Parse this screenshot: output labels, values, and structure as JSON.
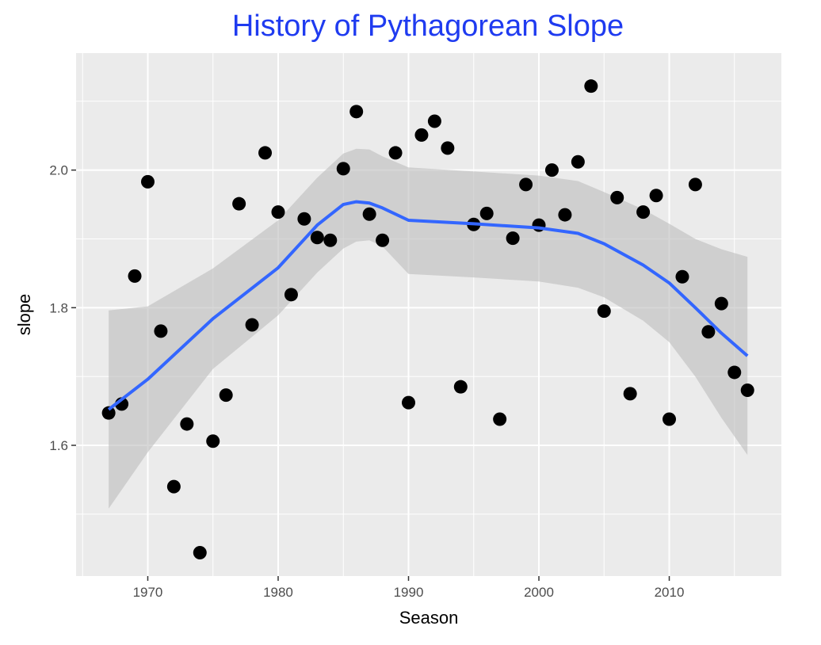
{
  "chart_data": {
    "type": "scatter",
    "title": "History of Pythagorean Slope",
    "xlabel": "Season",
    "ylabel": "slope",
    "xlim": [
      1964.5,
      2018.6
    ],
    "ylim": [
      1.41,
      2.17
    ],
    "xticks": [
      1970,
      1980,
      1990,
      2000,
      2010
    ],
    "yticks": [
      1.6,
      1.8,
      2.0
    ],
    "grid": true,
    "legend": "none",
    "colors": {
      "title": "#1f3bf0",
      "panel": "#ebebeb",
      "grid": "#ffffff",
      "point": "#000000",
      "smooth_line": "#3366ff",
      "band": "#bdbdbd"
    },
    "points": {
      "x": [
        1967,
        1968,
        1969,
        1970,
        1971,
        1972,
        1973,
        1974,
        1975,
        1976,
        1977,
        1978,
        1979,
        1980,
        1981,
        1982,
        1983,
        1984,
        1985,
        1986,
        1987,
        1988,
        1989,
        1990,
        1991,
        1992,
        1993,
        1994,
        1995,
        1996,
        1997,
        1998,
        1999,
        2000,
        2001,
        2002,
        2003,
        2004,
        2005,
        2006,
        2007,
        2008,
        2009,
        2010,
        2011,
        2012,
        2013,
        2014,
        2015,
        2016
      ],
      "y": [
        1.647,
        1.66,
        1.846,
        1.983,
        1.766,
        1.54,
        1.631,
        1.444,
        1.606,
        1.673,
        1.951,
        1.775,
        2.025,
        1.939,
        1.819,
        1.929,
        1.902,
        1.898,
        2.002,
        2.085,
        1.936,
        1.898,
        2.025,
        1.662,
        2.051,
        2.071,
        2.032,
        1.685,
        1.921,
        1.937,
        1.638,
        1.901,
        1.979,
        1.92,
        2.0,
        1.935,
        2.012,
        2.122,
        1.795,
        1.96,
        1.675,
        1.939,
        1.963,
        1.638,
        1.845,
        1.979,
        1.765,
        1.806,
        1.706,
        1.68
      ]
    },
    "smooth": {
      "x": [
        1967,
        1970,
        1975,
        1980,
        1983,
        1985,
        1986,
        1987,
        1988,
        1990,
        1995,
        2000,
        2003,
        2005,
        2008,
        2010,
        2012,
        2014,
        2016
      ],
      "y": [
        1.652,
        1.696,
        1.784,
        1.858,
        1.92,
        1.95,
        1.954,
        1.952,
        1.945,
        1.927,
        1.922,
        1.916,
        1.908,
        1.893,
        1.862,
        1.836,
        1.8,
        1.763,
        1.73
      ],
      "lower": [
        1.508,
        1.59,
        1.711,
        1.789,
        1.851,
        1.886,
        1.896,
        1.898,
        1.889,
        1.849,
        1.844,
        1.838,
        1.829,
        1.815,
        1.781,
        1.75,
        1.7,
        1.64,
        1.586
      ],
      "upper": [
        1.796,
        1.802,
        1.857,
        1.927,
        1.989,
        2.024,
        2.031,
        2.03,
        2.02,
        2.004,
        1.998,
        1.992,
        1.984,
        1.968,
        1.943,
        1.922,
        1.9,
        1.885,
        1.874
      ]
    }
  }
}
